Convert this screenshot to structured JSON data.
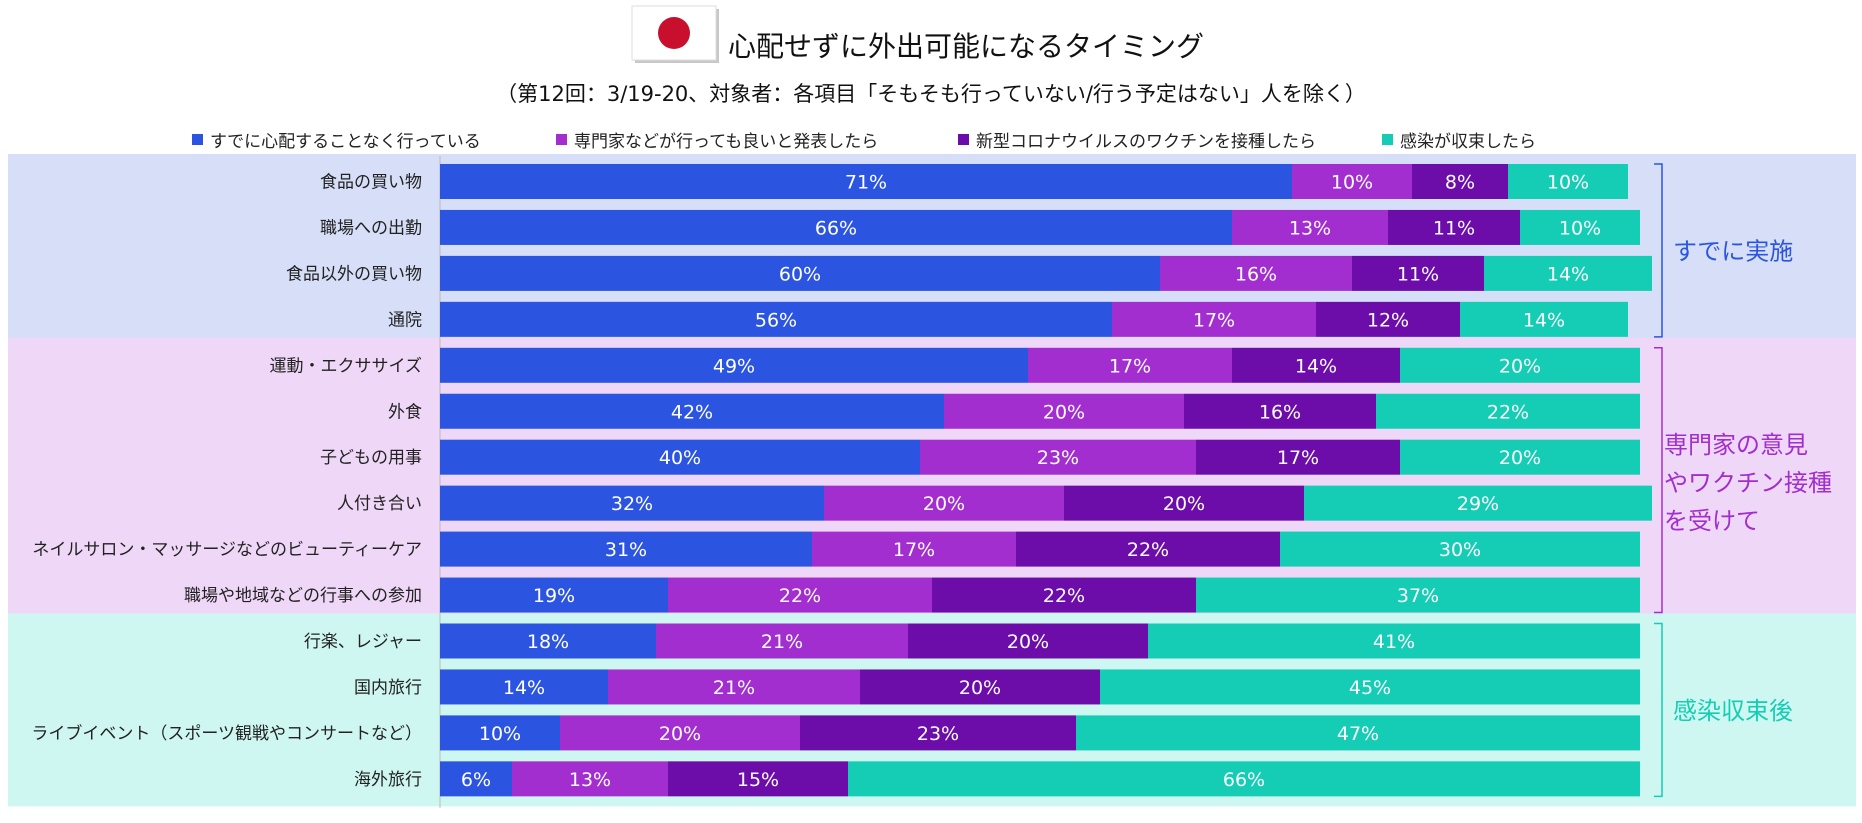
{
  "chart_data": {
    "type": "bar",
    "orientation": "horizontal",
    "stacked": true,
    "title": "心配せずに外出可能になるタイミング",
    "subtitle": "（第12回：3/19-20、対象者：各項目「そもそも行っていない/行う予定はない」人を除く）",
    "flag": "japan-flag",
    "xlabel": "",
    "ylabel": "",
    "xlim": [
      0,
      100
    ],
    "value_suffix": "%",
    "legend_position": "top",
    "categories": [
      "食品の買い物",
      "職場への出勤",
      "食品以外の買い物",
      "通院",
      "運動・エクササイズ",
      "外食",
      "子どもの用事",
      "人付き合い",
      "ネイルサロン・マッサージなどのビューティーケア",
      "職場や地域などの行事への参加",
      "行楽、レジャー",
      "国内旅行",
      "ライブイベント（スポーツ観戦やコンサートなど）",
      "海外旅行"
    ],
    "series": [
      {
        "name": "すでに心配することなく行っている",
        "color": "#2B55E0",
        "values": [
          71,
          66,
          60,
          56,
          49,
          42,
          40,
          32,
          31,
          19,
          18,
          14,
          10,
          6
        ]
      },
      {
        "name": "専門家などが行っても良いと発表したら",
        "color": "#A32ECF",
        "values": [
          10,
          13,
          16,
          17,
          17,
          20,
          23,
          20,
          17,
          22,
          21,
          21,
          20,
          13
        ]
      },
      {
        "name": "新型コロナウイルスのワクチンを接種したら",
        "color": "#6C0DAA",
        "values": [
          8,
          11,
          11,
          12,
          14,
          16,
          17,
          20,
          22,
          22,
          20,
          20,
          23,
          15
        ]
      },
      {
        "name": "感染が収束したら",
        "color": "#14CDB4",
        "values": [
          10,
          10,
          14,
          14,
          20,
          22,
          20,
          29,
          30,
          37,
          41,
          45,
          47,
          66
        ]
      }
    ],
    "groups": [
      {
        "label": "すでに実施",
        "start": 0,
        "end": 3,
        "bg": "#D6DEF8",
        "text_color": "#2B55E0"
      },
      {
        "label": "専門家の意見やワクチン接種を受けて",
        "start": 4,
        "end": 9,
        "bg": "#EFD7F7",
        "text_color": "#A32ECF"
      },
      {
        "label": "感染収束後",
        "start": 10,
        "end": 13,
        "bg": "#CFF7F1",
        "text_color": "#14CDB4"
      }
    ],
    "bar_label_color": "#ffffff"
  }
}
